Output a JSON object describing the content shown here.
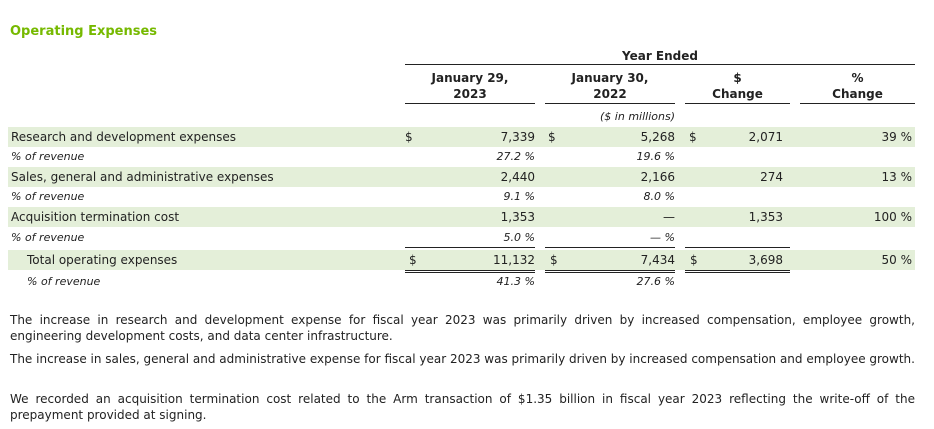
{
  "section_title": "Operating Expenses",
  "header": {
    "group": "Year Ended",
    "col1": [
      "January 29,",
      "2023"
    ],
    "col2": [
      "January 30,",
      "2022"
    ],
    "col3": [
      "$",
      "Change"
    ],
    "col4": [
      "%",
      "Change"
    ],
    "units": "($ in millions)"
  },
  "rows": [
    {
      "label": "Research and development expenses",
      "d1": "$",
      "v1": "7,339",
      "d2": "$",
      "v2": "5,268",
      "d3": "$",
      "v3": "2,071",
      "v4": "39 %"
    },
    {
      "label": "% of revenue",
      "v1": "27.2 %",
      "v2": "19.6 %"
    },
    {
      "label": "Sales, general and administrative expenses",
      "v1": "2,440",
      "v2": "2,166",
      "v3": "274",
      "v4": "13 %"
    },
    {
      "label": "% of revenue",
      "v1": "9.1 %",
      "v2": "8.0 %"
    },
    {
      "label": "Acquisition termination cost",
      "v1": "1,353",
      "v2": "—",
      "v3": "1,353",
      "v4": "100 %"
    },
    {
      "label": "% of revenue",
      "v1": "5.0 %",
      "v2": "— %"
    },
    {
      "label": "Total operating expenses",
      "d1": "$",
      "v1": "11,132",
      "d2": "$",
      "v2": "7,434",
      "d3": "$",
      "v3": "3,698",
      "v4": "50 %"
    },
    {
      "label": "% of revenue",
      "v1": "41.3 %",
      "v2": "27.6 %"
    }
  ],
  "paragraphs": [
    "The increase in research and development expense for fiscal year 2023 was primarily driven by increased compensation, employee growth, engineering development costs, and data center infrastructure.",
    "The increase in sales, general and administrative expense for fiscal year 2023 was primarily driven by increased compensation and employee growth.",
    "We recorded an acquisition termination cost related to the Arm transaction of $1.35 billion in fiscal year 2023 reflecting the write-off of the prepayment provided at signing."
  ]
}
